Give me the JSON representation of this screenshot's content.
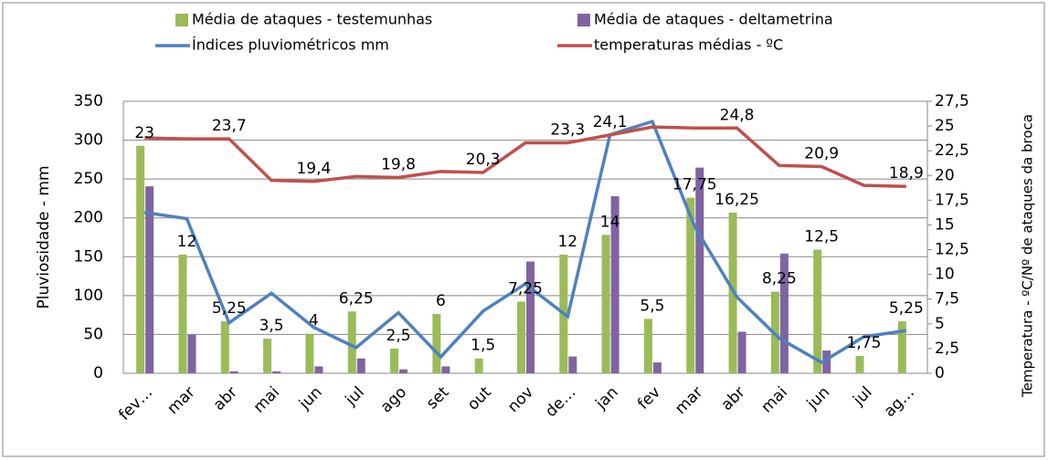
{
  "chart_data": {
    "type": "bar-line",
    "categories": [
      "fev…",
      "mar",
      "abr",
      "mai",
      "jun",
      "jul",
      "ago",
      "set",
      "out",
      "nov",
      "de…",
      "jan",
      "fev",
      "mar",
      "abr",
      "mai",
      "jun",
      "jul",
      "ag…"
    ],
    "series": [
      {
        "name": "Média de ataques - testemunhas",
        "type": "bar",
        "color": "#9bbb59",
        "axis": "y2",
        "values": [
          23,
          12,
          5.25,
          3.5,
          4,
          6.25,
          2.5,
          6,
          1.5,
          7.25,
          12,
          14,
          5.5,
          17.75,
          16.25,
          8.25,
          12.5,
          1.75,
          5.25
        ],
        "value_labels": [
          "23",
          "12",
          "5,25",
          "3,5",
          "4",
          "6,25",
          "2,5",
          "6",
          "1,5",
          "7,25",
          "12",
          "14",
          "5,5",
          "17,75",
          "16,25",
          "8,25",
          "12,5",
          "1,75",
          "5,25"
        ]
      },
      {
        "name": "Média de ataques - deltametrina",
        "type": "bar",
        "color": "#8064a2",
        "axis": "y2",
        "values": [
          18.9,
          3.9,
          0.2,
          0.2,
          0.7,
          1.5,
          0.4,
          0.7,
          0,
          11.3,
          1.7,
          17.9,
          1.1,
          20.8,
          4.2,
          12.1,
          2.3,
          0,
          0
        ]
      },
      {
        "name": "Índices pluviométricos mm",
        "type": "line",
        "color": "#4f81bd",
        "values": [
          207,
          199,
          65,
          103,
          59,
          33,
          78,
          21,
          80,
          115,
          73,
          307,
          324,
          189,
          98,
          45,
          14,
          47,
          55
        ]
      },
      {
        "name": "temperaturas médias - ºC",
        "type": "line",
        "color": "#c0504d",
        "axis": "y2",
        "values": [
          23.8,
          23.7,
          23.7,
          19.5,
          19.4,
          19.9,
          19.8,
          20.4,
          20.3,
          23.3,
          23.3,
          24.1,
          24.9,
          24.8,
          24.8,
          21,
          20.9,
          19,
          18.9
        ],
        "value_labels": [
          null,
          null,
          "23,7",
          null,
          "19,4",
          null,
          "19,8",
          null,
          "20,3",
          null,
          "23,3",
          "24,1",
          null,
          null,
          "24,8",
          null,
          "20,9",
          null,
          "18,9"
        ]
      }
    ],
    "y_label": "Pluviosidade - mm",
    "y2_label": "Temperatura - ºC/Nº de ataques da broca",
    "ylim": [
      0,
      350
    ],
    "yticks": [
      0,
      50,
      100,
      150,
      200,
      250,
      300,
      350
    ],
    "y2lim": [
      0,
      27.5
    ],
    "y2ticks": [
      0,
      {
        "value": 2.5,
        "label": "2,5"
      },
      5,
      {
        "value": 7.5,
        "label": "7,5"
      },
      10,
      {
        "value": 12.5,
        "label": "12,5"
      },
      15,
      {
        "value": 17.5,
        "label": "17,5"
      },
      20,
      {
        "value": 22.5,
        "label": "22,5"
      },
      25,
      {
        "value": 27.5,
        "label": "27,5"
      }
    ],
    "grid": true,
    "legend": "top"
  }
}
